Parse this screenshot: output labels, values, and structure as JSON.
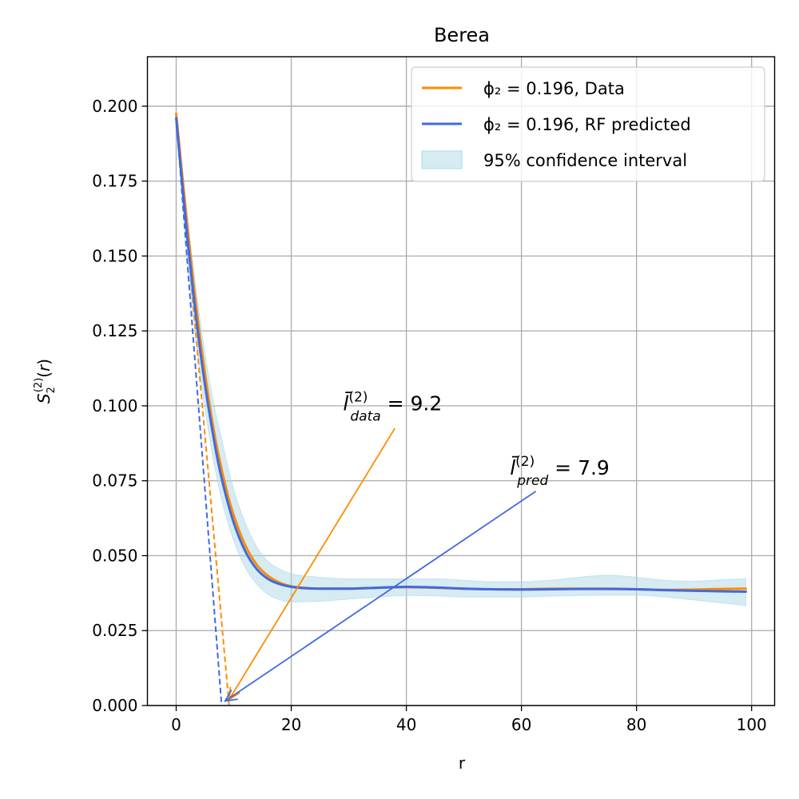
{
  "chart_data": {
    "type": "line",
    "title": "Berea",
    "xlabel": "r",
    "ylabel": "S₂⁽²⁾(r)",
    "xlim": [
      -5,
      104
    ],
    "ylim": [
      0,
      0.2165
    ],
    "xticks": [
      0,
      20,
      40,
      60,
      80,
      100
    ],
    "yticks": [
      0.0,
      0.025,
      0.05,
      0.075,
      0.1,
      0.125,
      0.15,
      0.175,
      0.2
    ],
    "xtick_labels": [
      "0",
      "20",
      "40",
      "60",
      "80",
      "100"
    ],
    "ytick_labels": [
      "0.000",
      "0.025",
      "0.050",
      "0.075",
      "0.100",
      "0.125",
      "0.150",
      "0.175",
      "0.200"
    ],
    "grid": true,
    "legend_position": "top-right",
    "legend": [
      {
        "label": "ϕ₂ = 0.196, Data",
        "color": "#ff8c00",
        "kind": "line"
      },
      {
        "label": "ϕ₂ = 0.196, RF predicted",
        "color": "#4169e1",
        "kind": "line"
      },
      {
        "label": "95% confidence interval",
        "color": "#add8e6",
        "kind": "band"
      }
    ],
    "series": [
      {
        "name": "ϕ₂ = 0.196, Data",
        "color": "#ff8c00",
        "x": [
          0,
          1,
          2,
          3,
          4,
          5,
          6,
          7,
          8,
          9,
          10,
          12,
          14,
          16,
          18,
          20,
          22,
          25,
          30,
          35,
          40,
          45,
          50,
          55,
          60,
          65,
          70,
          75,
          80,
          85,
          90,
          95,
          99
        ],
        "y": [
          0.1975,
          0.178,
          0.159,
          0.141,
          0.125,
          0.111,
          0.098,
          0.087,
          0.078,
          0.07,
          0.0635,
          0.0535,
          0.047,
          0.0432,
          0.041,
          0.0398,
          0.0393,
          0.039,
          0.039,
          0.0393,
          0.0395,
          0.0393,
          0.039,
          0.0388,
          0.0388,
          0.039,
          0.039,
          0.039,
          0.0388,
          0.0386,
          0.0387,
          0.0389,
          0.039
        ]
      },
      {
        "name": "ϕ₂ = 0.196, RF predicted",
        "color": "#4169e1",
        "x": [
          0,
          1,
          2,
          3,
          4,
          5,
          6,
          7,
          8,
          9,
          10,
          12,
          14,
          16,
          18,
          20,
          22,
          25,
          30,
          35,
          40,
          45,
          50,
          55,
          60,
          65,
          70,
          75,
          80,
          85,
          90,
          95,
          99
        ],
        "y": [
          0.196,
          0.175,
          0.155,
          0.137,
          0.121,
          0.107,
          0.095,
          0.084,
          0.075,
          0.0675,
          0.061,
          0.0515,
          0.0455,
          0.0422,
          0.0405,
          0.0396,
          0.0392,
          0.039,
          0.039,
          0.0393,
          0.0396,
          0.0394,
          0.039,
          0.0388,
          0.0387,
          0.0388,
          0.0389,
          0.0389,
          0.0388,
          0.0385,
          0.0383,
          0.0381,
          0.038
        ]
      }
    ],
    "confidence_band": {
      "name": "95% confidence interval",
      "color": "#add8e6",
      "x": [
        0,
        2,
        4,
        6,
        8,
        10,
        12,
        14,
        16,
        18,
        20,
        25,
        30,
        35,
        40,
        45,
        50,
        55,
        60,
        65,
        70,
        75,
        80,
        85,
        90,
        95,
        99
      ],
      "lower": [
        0.194,
        0.148,
        0.113,
        0.087,
        0.068,
        0.055,
        0.046,
        0.0405,
        0.037,
        0.0353,
        0.0346,
        0.0348,
        0.0355,
        0.0362,
        0.0367,
        0.0366,
        0.0362,
        0.0362,
        0.0362,
        0.0365,
        0.0367,
        0.0368,
        0.0368,
        0.0362,
        0.0352,
        0.0342,
        0.0333
      ],
      "upper": [
        0.198,
        0.162,
        0.131,
        0.106,
        0.088,
        0.072,
        0.061,
        0.053,
        0.048,
        0.0455,
        0.044,
        0.0428,
        0.0423,
        0.0423,
        0.0423,
        0.0423,
        0.0418,
        0.0413,
        0.0413,
        0.0418,
        0.0428,
        0.0435,
        0.0428,
        0.0418,
        0.0415,
        0.042,
        0.0423
      ]
    },
    "tangent_lines": [
      {
        "color": "#ff8c00",
        "x": [
          0,
          9.2
        ],
        "y": [
          0.1975,
          0.0
        ]
      },
      {
        "color": "#4169e1",
        "x": [
          0,
          7.9
        ],
        "y": [
          0.196,
          0.0
        ]
      }
    ],
    "annotations": [
      {
        "text": "= 9.2",
        "symbol": "l̄",
        "superscript": "(2)",
        "subscript": "data",
        "color": "#ff8c00",
        "text_x": 29,
        "text_y": 0.0985,
        "arrow_from": [
          38,
          0.0925
        ],
        "arrow_to": [
          9.2,
          0.002
        ]
      },
      {
        "text": "= 7.9",
        "symbol": "l̄",
        "superscript": "(2)",
        "subscript": "pred",
        "color": "#4169e1",
        "text_x": 58,
        "text_y": 0.077,
        "arrow_from": [
          62.5,
          0.0715
        ],
        "arrow_to": [
          8.5,
          0.0015
        ]
      }
    ]
  }
}
